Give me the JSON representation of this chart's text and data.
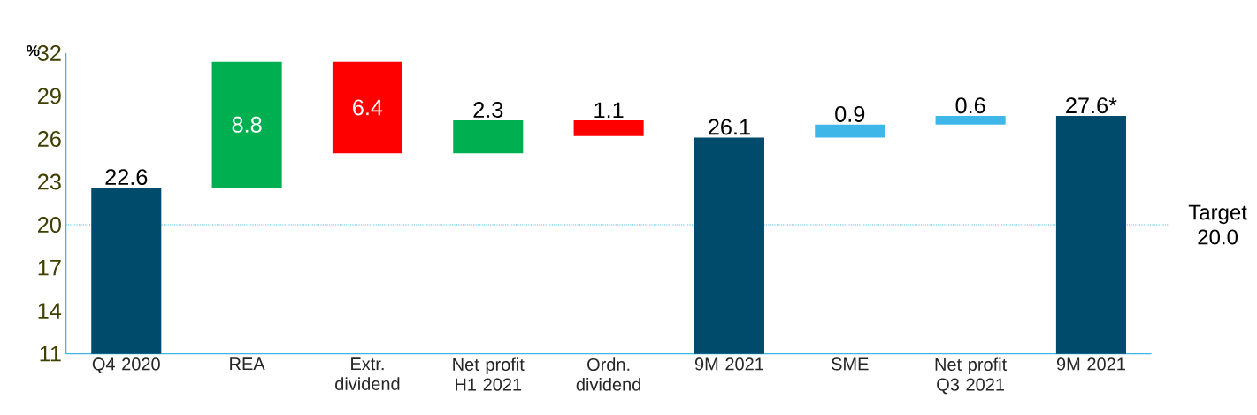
{
  "chart_data": {
    "type": "bar",
    "ylabel": "%",
    "categories": [
      "Q4 2020",
      "REA",
      "Extr. dividend",
      "Net profit H1 2021",
      "Ordn. dividend",
      "9M 2021",
      "SME",
      "Net profit Q3 2021",
      "9M 2021"
    ],
    "values": [
      22.6,
      8.8,
      6.4,
      2.3,
      1.1,
      26.1,
      0.9,
      0.6,
      27.6
    ],
    "base": [
      null,
      22.6,
      25.0,
      25.0,
      26.2,
      null,
      26.1,
      27.0,
      null
    ],
    "colors": [
      "#004b6b",
      "#00b050",
      "#ff0000",
      "#00b050",
      "#ff0000",
      "#004b6b",
      "#3fb6e8",
      "#3fb6e8",
      "#004b6b"
    ],
    "value_labels": [
      "22.6",
      "8.8",
      "6.4",
      "2.3",
      "1.1",
      "26.1",
      "0.9",
      "0.6",
      "27.6*"
    ],
    "ylim": [
      11,
      32
    ],
    "yticks": [
      11,
      14,
      17,
      20,
      23,
      26,
      29,
      32
    ],
    "ref_lines": [
      {
        "axis": "y",
        "value": 20.0,
        "label": "Target 20.0",
        "color": "#3fb6e8",
        "line_style": "dotted"
      }
    ]
  }
}
